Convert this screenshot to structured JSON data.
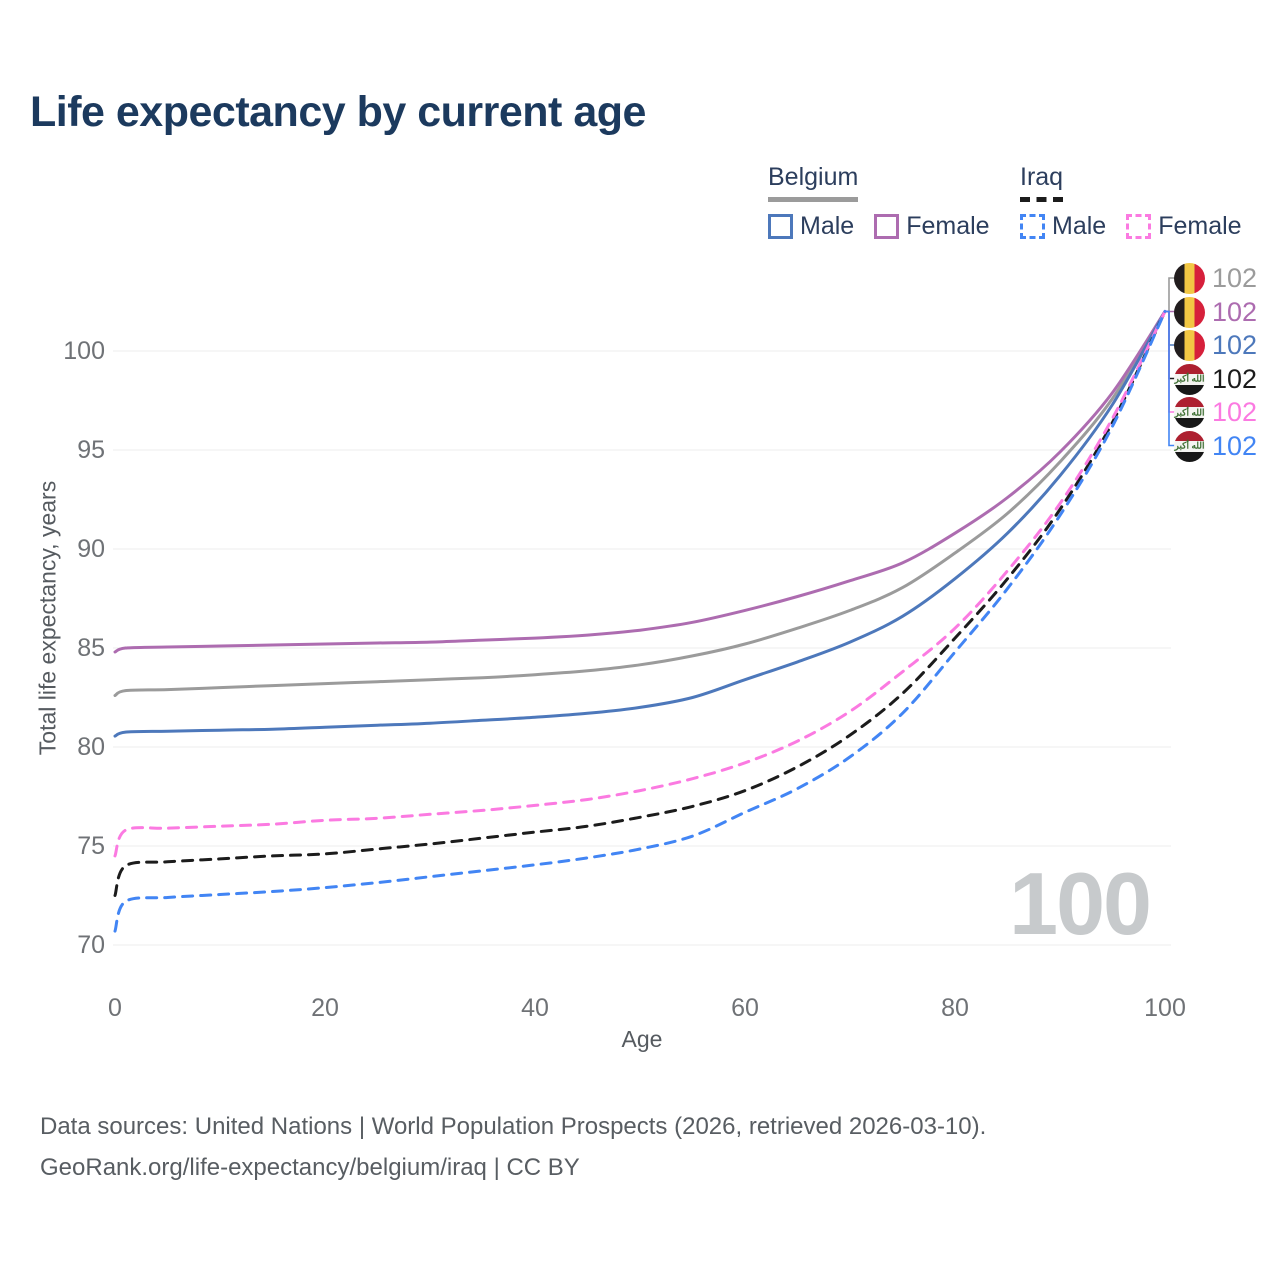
{
  "title": "Life expectancy by current age",
  "legend": {
    "groups": [
      {
        "label": "Belgium",
        "underline_style": "solid",
        "underline_color": "#9b9b9b",
        "items": [
          {
            "label": "Male",
            "color": "#4d78bb",
            "style": "solid"
          },
          {
            "label": "Female",
            "color": "#ad6cb0",
            "style": "solid"
          }
        ]
      },
      {
        "label": "Iraq",
        "underline_style": "dashed",
        "underline_color": "#1c1c1c",
        "items": [
          {
            "label": "Male",
            "color": "#4285f4",
            "style": "dashed"
          },
          {
            "label": "Female",
            "color": "#fb7ae1",
            "style": "dashed"
          }
        ]
      }
    ]
  },
  "chart_data": {
    "type": "line",
    "title": "Life expectancy by current age",
    "xlabel": "Age",
    "ylabel": "Total life expectancy, years",
    "x_ticks": [
      0,
      20,
      40,
      60,
      80,
      100
    ],
    "y_ticks": [
      70,
      75,
      80,
      85,
      90,
      95,
      100
    ],
    "xlim": [
      0,
      100
    ],
    "ylim": [
      69,
      103
    ],
    "grid": "horizontal",
    "legend_position": "top-right",
    "age_counter": "100",
    "x": [
      0,
      1,
      5,
      10,
      15,
      20,
      25,
      30,
      35,
      40,
      45,
      50,
      55,
      60,
      65,
      70,
      75,
      80,
      85,
      90,
      95,
      100
    ],
    "series": [
      {
        "name": "Belgium — Both sexes",
        "country": "Belgium",
        "color": "#9b9b9b",
        "dash": "solid",
        "end_label": "102",
        "values": [
          82.6,
          82.85,
          82.9,
          83.0,
          83.1,
          83.2,
          83.3,
          83.4,
          83.5,
          83.65,
          83.85,
          84.15,
          84.6,
          85.2,
          86.0,
          86.9,
          88.05,
          89.8,
          91.8,
          94.4,
          97.6,
          102
        ]
      },
      {
        "name": "Belgium — Female",
        "country": "Belgium",
        "color": "#ad6cb0",
        "dash": "solid",
        "end_label": "102",
        "values": [
          84.8,
          85.0,
          85.05,
          85.1,
          85.15,
          85.2,
          85.25,
          85.3,
          85.4,
          85.5,
          85.65,
          85.9,
          86.3,
          86.9,
          87.6,
          88.4,
          89.3,
          90.8,
          92.6,
          94.9,
          97.9,
          102
        ]
      },
      {
        "name": "Belgium — Male",
        "country": "Belgium",
        "color": "#4d78bb",
        "dash": "solid",
        "end_label": "102",
        "values": [
          80.55,
          80.75,
          80.8,
          80.85,
          80.9,
          81.0,
          81.1,
          81.2,
          81.35,
          81.5,
          81.7,
          82.0,
          82.5,
          83.4,
          84.3,
          85.3,
          86.6,
          88.5,
          90.8,
          93.7,
          97.3,
          102
        ]
      },
      {
        "name": "Iraq — Both sexes",
        "country": "Iraq",
        "color": "#1c1c1c",
        "dash": "dashed",
        "end_label": "102",
        "values": [
          72.5,
          74.0,
          74.2,
          74.35,
          74.5,
          74.6,
          74.85,
          75.1,
          75.4,
          75.7,
          76.0,
          76.45,
          77.0,
          77.8,
          79.0,
          80.6,
          82.7,
          85.5,
          88.5,
          92.0,
          96.4,
          102
        ]
      },
      {
        "name": "Iraq — Female",
        "country": "Iraq",
        "color": "#fb7ae1",
        "dash": "dashed",
        "end_label": "102",
        "values": [
          74.5,
          75.8,
          75.9,
          76.0,
          76.1,
          76.3,
          76.4,
          76.6,
          76.8,
          77.05,
          77.35,
          77.8,
          78.4,
          79.2,
          80.3,
          81.8,
          83.8,
          86.0,
          88.9,
          92.3,
          96.6,
          102
        ]
      },
      {
        "name": "Iraq — Male",
        "country": "Iraq",
        "color": "#4285f4",
        "dash": "dashed",
        "end_label": "102",
        "values": [
          70.7,
          72.2,
          72.4,
          72.55,
          72.7,
          72.9,
          73.15,
          73.45,
          73.75,
          74.05,
          74.4,
          74.85,
          75.5,
          76.7,
          77.9,
          79.5,
          81.7,
          84.8,
          88.0,
          91.7,
          96.2,
          102
        ]
      }
    ]
  },
  "footer": {
    "line1": "Data sources: United Nations | World Population Prospects (2026, retrieved 2026-03-10).",
    "line2": "GeoRank.org/life-expectancy/belgium/iraq | CC BY"
  }
}
